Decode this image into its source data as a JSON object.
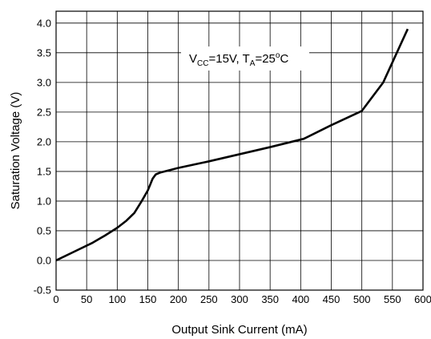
{
  "chart_data": {
    "type": "line",
    "xlabel": "Output Sink Current (mA)",
    "ylabel": "Saturation Voltage (V)",
    "xlim": [
      0,
      600
    ],
    "ylim": [
      -0.5,
      4.2
    ],
    "x_ticks": [
      "0",
      "50",
      "100",
      "150",
      "200",
      "250",
      "300",
      "350",
      "400",
      "450",
      "500",
      "550",
      "600"
    ],
    "y_ticks": [
      "-0.5",
      "0.0",
      "0.5",
      "1.0",
      "1.5",
      "2.0",
      "2.5",
      "3.0",
      "3.5",
      "4.0"
    ],
    "grid": true,
    "annotation": {
      "v": "V",
      "v_sub": "CC",
      "v_value": "=15V, T",
      "t_sub": "A",
      "t_value": "=25",
      "degree": "o",
      "unit": "C"
    },
    "series": [
      {
        "color": "#000000",
        "x": [
          0,
          30,
          60,
          80,
          100,
          115,
          128,
          140,
          150,
          158,
          163,
          170,
          200,
          250,
          300,
          350,
          405,
          450,
          500,
          535,
          575
        ],
        "y": [
          0.0,
          0.15,
          0.3,
          0.42,
          0.55,
          0.67,
          0.8,
          1.0,
          1.18,
          1.38,
          1.45,
          1.48,
          1.56,
          1.67,
          1.79,
          1.91,
          2.05,
          2.28,
          2.52,
          3.0,
          3.9
        ]
      }
    ]
  }
}
